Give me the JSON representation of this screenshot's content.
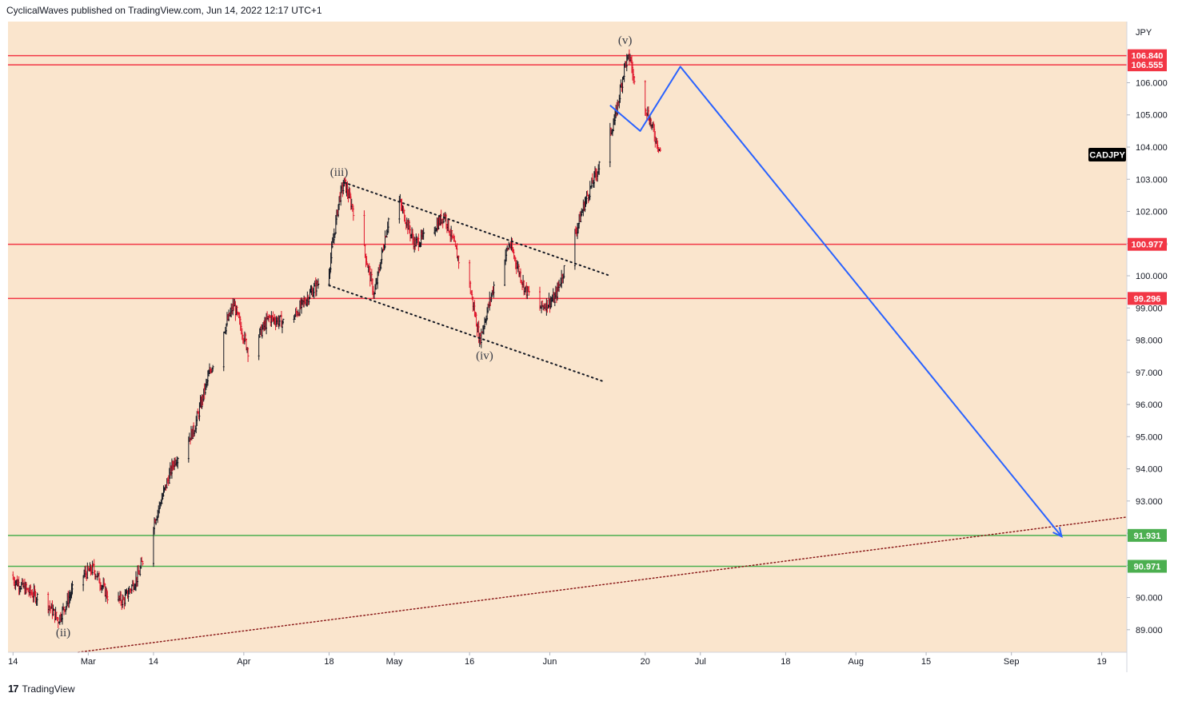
{
  "header": {
    "published_text": "CyclicalWaves published on TradingView.com, Jun 14, 2022 12:17 UTC+1"
  },
  "footer": {
    "logo_glyph": "17",
    "brand": "TradingView"
  },
  "colors": {
    "background": "#fae5cd",
    "resistance_line": "#f23645",
    "support_line": "#4caf50",
    "projection": "#2962ff",
    "bear_candle": "#e0182d",
    "bull_candle": "#131722",
    "symbol_tag": "#000000"
  },
  "chart_data": {
    "type": "candlestick",
    "symbol": "CADJPY",
    "currency": "JPY",
    "y_axis": {
      "range": [
        88.3,
        107.9
      ],
      "ticks": [
        "89.000",
        "90.000",
        "91.000",
        "92.000",
        "93.000",
        "94.000",
        "95.000",
        "96.000",
        "97.000",
        "98.000",
        "99.000",
        "100.000",
        "101.000",
        "102.000",
        "103.000",
        "104.000",
        "105.000",
        "106.000"
      ]
    },
    "x_axis": {
      "range": [
        "2022-02-13",
        "2022-09-24"
      ],
      "ticks": [
        {
          "date": "2022-02-14",
          "label": "14"
        },
        {
          "date": "2022-03-01",
          "label": "Mar"
        },
        {
          "date": "2022-03-14",
          "label": "14"
        },
        {
          "date": "2022-04-01",
          "label": "Apr"
        },
        {
          "date": "2022-04-18",
          "label": "18"
        },
        {
          "date": "2022-05-01",
          "label": "May"
        },
        {
          "date": "2022-05-16",
          "label": "16"
        },
        {
          "date": "2022-06-01",
          "label": "Jun"
        },
        {
          "date": "2022-06-20",
          "label": "20"
        },
        {
          "date": "2022-07-01",
          "label": "Jul"
        },
        {
          "date": "2022-07-18",
          "label": "18"
        },
        {
          "date": "2022-08-01",
          "label": "Aug"
        },
        {
          "date": "2022-08-15",
          "label": "15"
        },
        {
          "date": "2022-09-01",
          "label": "Sep"
        },
        {
          "date": "2022-09-19",
          "label": "19"
        }
      ]
    },
    "price_path": [
      [
        "2022-02-13",
        90.7
      ],
      [
        "2022-02-17",
        90.2
      ],
      [
        "2022-02-21",
        89.8
      ],
      [
        "2022-02-23",
        89.3
      ],
      [
        "2022-02-27",
        90.6
      ],
      [
        "2022-03-02",
        90.9
      ],
      [
        "2022-03-05",
        90.0
      ],
      [
        "2022-03-08",
        89.9
      ],
      [
        "2022-03-11",
        90.7
      ],
      [
        "2022-03-14",
        92.3
      ],
      [
        "2022-03-18",
        94.2
      ],
      [
        "2022-03-22",
        95.2
      ],
      [
        "2022-03-25",
        96.9
      ],
      [
        "2022-03-28",
        98.3
      ],
      [
        "2022-03-30",
        99.1
      ],
      [
        "2022-04-02",
        97.6
      ],
      [
        "2022-04-06",
        98.7
      ],
      [
        "2022-04-10",
        98.5
      ],
      [
        "2022-04-14",
        99.4
      ],
      [
        "2022-04-18",
        100.2
      ],
      [
        "2022-04-20",
        102.4
      ],
      [
        "2022-04-21",
        102.9
      ],
      [
        "2022-04-24",
        101.5
      ],
      [
        "2022-04-27",
        99.4
      ],
      [
        "2022-04-30",
        101.9
      ],
      [
        "2022-05-02",
        102.3
      ],
      [
        "2022-05-05",
        101.0
      ],
      [
        "2022-05-08",
        101.3
      ],
      [
        "2022-05-11",
        101.9
      ],
      [
        "2022-05-14",
        100.4
      ],
      [
        "2022-05-16",
        99.7
      ],
      [
        "2022-05-18",
        98.0
      ],
      [
        "2022-05-21",
        99.8
      ],
      [
        "2022-05-24",
        101.0
      ],
      [
        "2022-05-27",
        99.6
      ],
      [
        "2022-05-30",
        99.0
      ],
      [
        "2022-06-02",
        99.3
      ],
      [
        "2022-06-05",
        100.8
      ],
      [
        "2022-06-08",
        102.3
      ],
      [
        "2022-06-11",
        103.5
      ],
      [
        "2022-06-14",
        104.9
      ],
      [
        "2022-06-16",
        106.6
      ],
      [
        "2022-06-17",
        106.8
      ],
      [
        "2022-06-18",
        105.8
      ],
      [
        "2022-06-20",
        105.3
      ],
      [
        "2022-06-22",
        104.3
      ],
      [
        "2022-06-23",
        103.9
      ]
    ],
    "horizontal_levels": [
      {
        "price": 106.84,
        "label": "106.840",
        "kind": "resistance"
      },
      {
        "price": 106.555,
        "label": "106.555",
        "kind": "resistance"
      },
      {
        "price": 100.977,
        "label": "100.977",
        "kind": "resistance"
      },
      {
        "price": 99.296,
        "label": "99.296",
        "kind": "resistance"
      },
      {
        "price": 91.931,
        "label": "91.931",
        "kind": "support"
      },
      {
        "price": 90.971,
        "label": "90.971",
        "kind": "support"
      }
    ],
    "channel_upper": [
      [
        "2022-04-21",
        102.9
      ],
      [
        "2022-06-13",
        100.0
      ]
    ],
    "channel_lower": [
      [
        "2022-04-18",
        99.7
      ],
      [
        "2022-06-12",
        96.7
      ]
    ],
    "long_trendline": [
      [
        "2022-02-27",
        88.3
      ],
      [
        "2022-09-24",
        92.5
      ]
    ],
    "projection": [
      [
        "2022-06-13",
        105.3
      ],
      [
        "2022-06-19",
        104.5
      ],
      [
        "2022-06-27",
        106.5
      ],
      [
        "2022-09-11",
        91.9
      ]
    ],
    "wave_labels": [
      {
        "text": "(ii)",
        "date": "2022-02-24",
        "price": 88.8
      },
      {
        "text": "(iii)",
        "date": "2022-04-20",
        "price": 103.1
      },
      {
        "text": "(iv)",
        "date": "2022-05-19",
        "price": 97.4
      },
      {
        "text": "(v)",
        "date": "2022-06-16",
        "price": 107.2
      }
    ]
  }
}
